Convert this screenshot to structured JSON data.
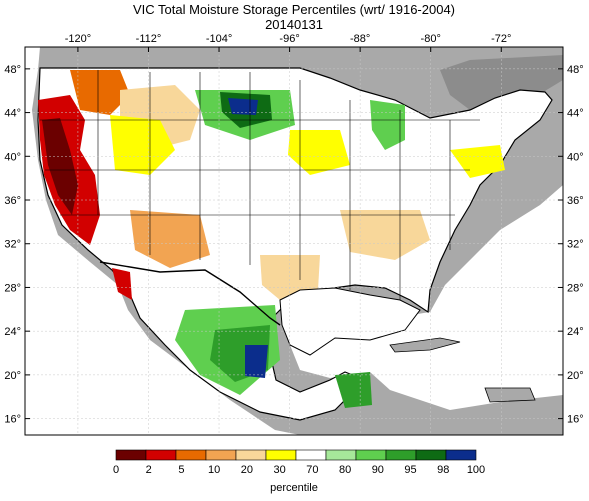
{
  "title": "VIC Total Moisture Storage Percentiles (wrt/ 1916-2004)",
  "subtitle": "20140131",
  "map": {
    "lon_ticks": [
      "-120",
      "-112",
      "-104",
      "-96",
      "-88",
      "-80",
      "-72"
    ],
    "lon_values": [
      -120,
      -112,
      -104,
      -96,
      -88,
      -80,
      -72
    ],
    "lat_ticks": [
      "48",
      "44",
      "40",
      "36",
      "32",
      "28",
      "24",
      "20",
      "16"
    ],
    "lat_values": [
      48,
      44,
      40,
      36,
      32,
      28,
      24,
      20,
      16
    ],
    "lon_range": [
      -126,
      -65
    ],
    "lat_range": [
      14.5,
      50
    ]
  },
  "legend": {
    "label": "percentile",
    "ticks": [
      "0",
      "2",
      "5",
      "10",
      "20",
      "30",
      "70",
      "80",
      "90",
      "95",
      "98",
      "100"
    ],
    "colors": [
      "#6b0000",
      "#d20000",
      "#e86a00",
      "#f2a452",
      "#f8d79a",
      "#ffff00",
      "#ffffff",
      "#a6e89a",
      "#5fcf4f",
      "#2e9e2a",
      "#0e6b14",
      "#0b2d8c"
    ]
  },
  "palette": {
    "ocean": "#ffffff",
    "land_outside": "#a9a9a9",
    "land_us": "#ffffff",
    "borders": "#000000"
  }
}
